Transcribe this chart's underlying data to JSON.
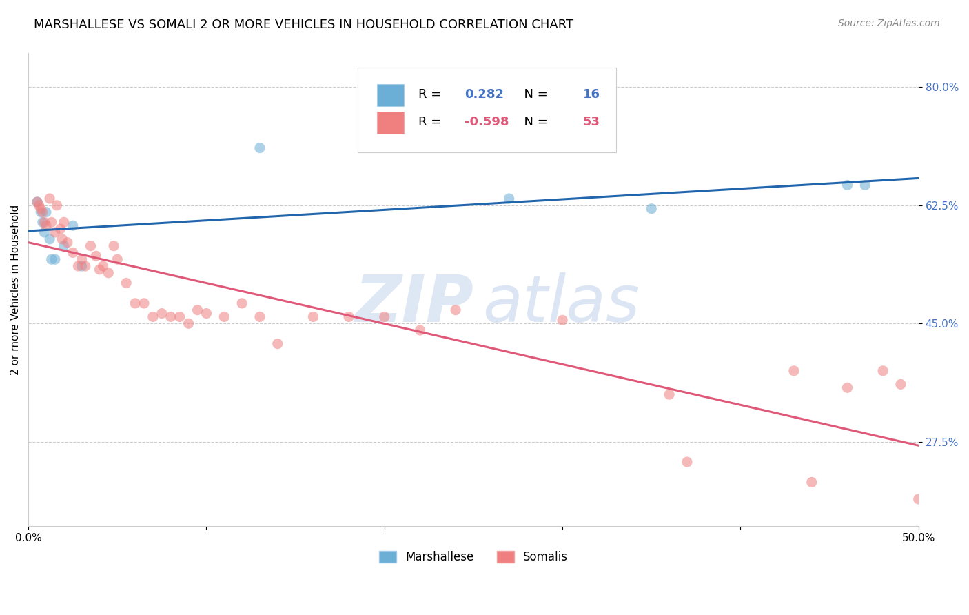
{
  "title": "MARSHALLESE VS SOMALI 2 OR MORE VEHICLES IN HOUSEHOLD CORRELATION CHART",
  "source": "Source: ZipAtlas.com",
  "ylabel": "2 or more Vehicles in Household",
  "xlim": [
    0.0,
    0.5
  ],
  "ylim": [
    0.15,
    0.85
  ],
  "yticks": [
    0.275,
    0.45,
    0.625,
    0.8
  ],
  "ytick_labels": [
    "27.5%",
    "45.0%",
    "62.5%",
    "80.0%"
  ],
  "xticks": [
    0.0,
    0.1,
    0.2,
    0.3,
    0.4,
    0.5
  ],
  "xtick_labels": [
    "0.0%",
    "",
    "",
    "",
    "",
    "50.0%"
  ],
  "grid_color": "#cccccc",
  "background_color": "#ffffff",
  "marshallese_color": "#6baed6",
  "somali_color": "#f08080",
  "marshallese_line_color": "#2166ac",
  "somali_line_color": "#e05878",
  "legend_R_marshallese": "0.282",
  "legend_N_marshallese": "16",
  "legend_R_somali": "-0.598",
  "legend_N_somali": "53",
  "watermark_zip": "ZIP",
  "watermark_atlas": "atlas",
  "marker_size": 120,
  "marker_alpha": 0.55,
  "line_width": 2.2,
  "title_fontsize": 13,
  "label_fontsize": 11,
  "tick_fontsize": 11,
  "legend_fontsize": 13,
  "source_fontsize": 10,
  "marshallese_x": [
    0.005,
    0.007,
    0.008,
    0.009,
    0.01,
    0.012,
    0.013,
    0.015,
    0.02,
    0.025,
    0.03,
    0.13,
    0.27,
    0.35,
    0.46,
    0.47
  ],
  "marshallese_y": [
    0.63,
    0.615,
    0.6,
    0.585,
    0.615,
    0.575,
    0.545,
    0.545,
    0.565,
    0.595,
    0.535,
    0.71,
    0.635,
    0.62,
    0.655,
    0.655
  ],
  "somali_x": [
    0.005,
    0.006,
    0.007,
    0.008,
    0.009,
    0.01,
    0.012,
    0.013,
    0.015,
    0.016,
    0.018,
    0.019,
    0.02,
    0.022,
    0.025,
    0.028,
    0.03,
    0.032,
    0.035,
    0.038,
    0.04,
    0.042,
    0.045,
    0.048,
    0.05,
    0.055,
    0.06,
    0.065,
    0.07,
    0.075,
    0.08,
    0.085,
    0.09,
    0.095,
    0.1,
    0.11,
    0.12,
    0.13,
    0.14,
    0.16,
    0.18,
    0.2,
    0.22,
    0.24,
    0.3,
    0.36,
    0.37,
    0.43,
    0.44,
    0.46,
    0.48,
    0.49,
    0.5
  ],
  "somali_y": [
    0.63,
    0.625,
    0.62,
    0.615,
    0.6,
    0.595,
    0.635,
    0.6,
    0.585,
    0.625,
    0.59,
    0.575,
    0.6,
    0.57,
    0.555,
    0.535,
    0.545,
    0.535,
    0.565,
    0.55,
    0.53,
    0.535,
    0.525,
    0.565,
    0.545,
    0.51,
    0.48,
    0.48,
    0.46,
    0.465,
    0.46,
    0.46,
    0.45,
    0.47,
    0.465,
    0.46,
    0.48,
    0.46,
    0.42,
    0.46,
    0.46,
    0.46,
    0.44,
    0.47,
    0.455,
    0.345,
    0.245,
    0.38,
    0.215,
    0.355,
    0.38,
    0.36,
    0.19
  ]
}
